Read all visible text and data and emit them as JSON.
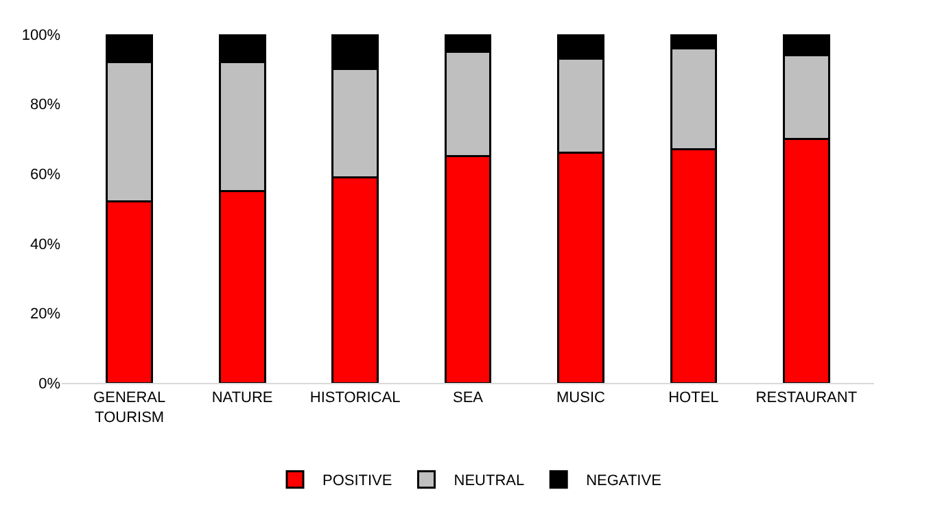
{
  "chart_data": {
    "type": "bar",
    "stacked": true,
    "categories": [
      "GENERAL TOURISM",
      "NATURE",
      "HISTORICAL",
      "SEA",
      "MUSIC",
      "HOTEL",
      "RESTAURANT"
    ],
    "series": [
      {
        "name": "POSITIVE",
        "color": "#ff0000",
        "values": [
          52,
          55,
          59,
          65,
          66,
          67,
          70
        ]
      },
      {
        "name": "NEUTRAL",
        "color": "#bfbfbf",
        "values": [
          40,
          37,
          31,
          30,
          27,
          29,
          24
        ]
      },
      {
        "name": "NEGATIVE",
        "color": "#000000",
        "values": [
          8,
          8,
          10,
          5,
          7,
          4,
          6
        ]
      }
    ],
    "ylim": [
      0,
      100
    ],
    "yticks": [
      {
        "value": 0,
        "label": "0%"
      },
      {
        "value": 20,
        "label": "20%"
      },
      {
        "value": 40,
        "label": "40%"
      },
      {
        "value": 60,
        "label": "60%"
      },
      {
        "value": 80,
        "label": "80%"
      },
      {
        "value": 100,
        "label": "100%"
      }
    ],
    "legend": "bottom"
  }
}
